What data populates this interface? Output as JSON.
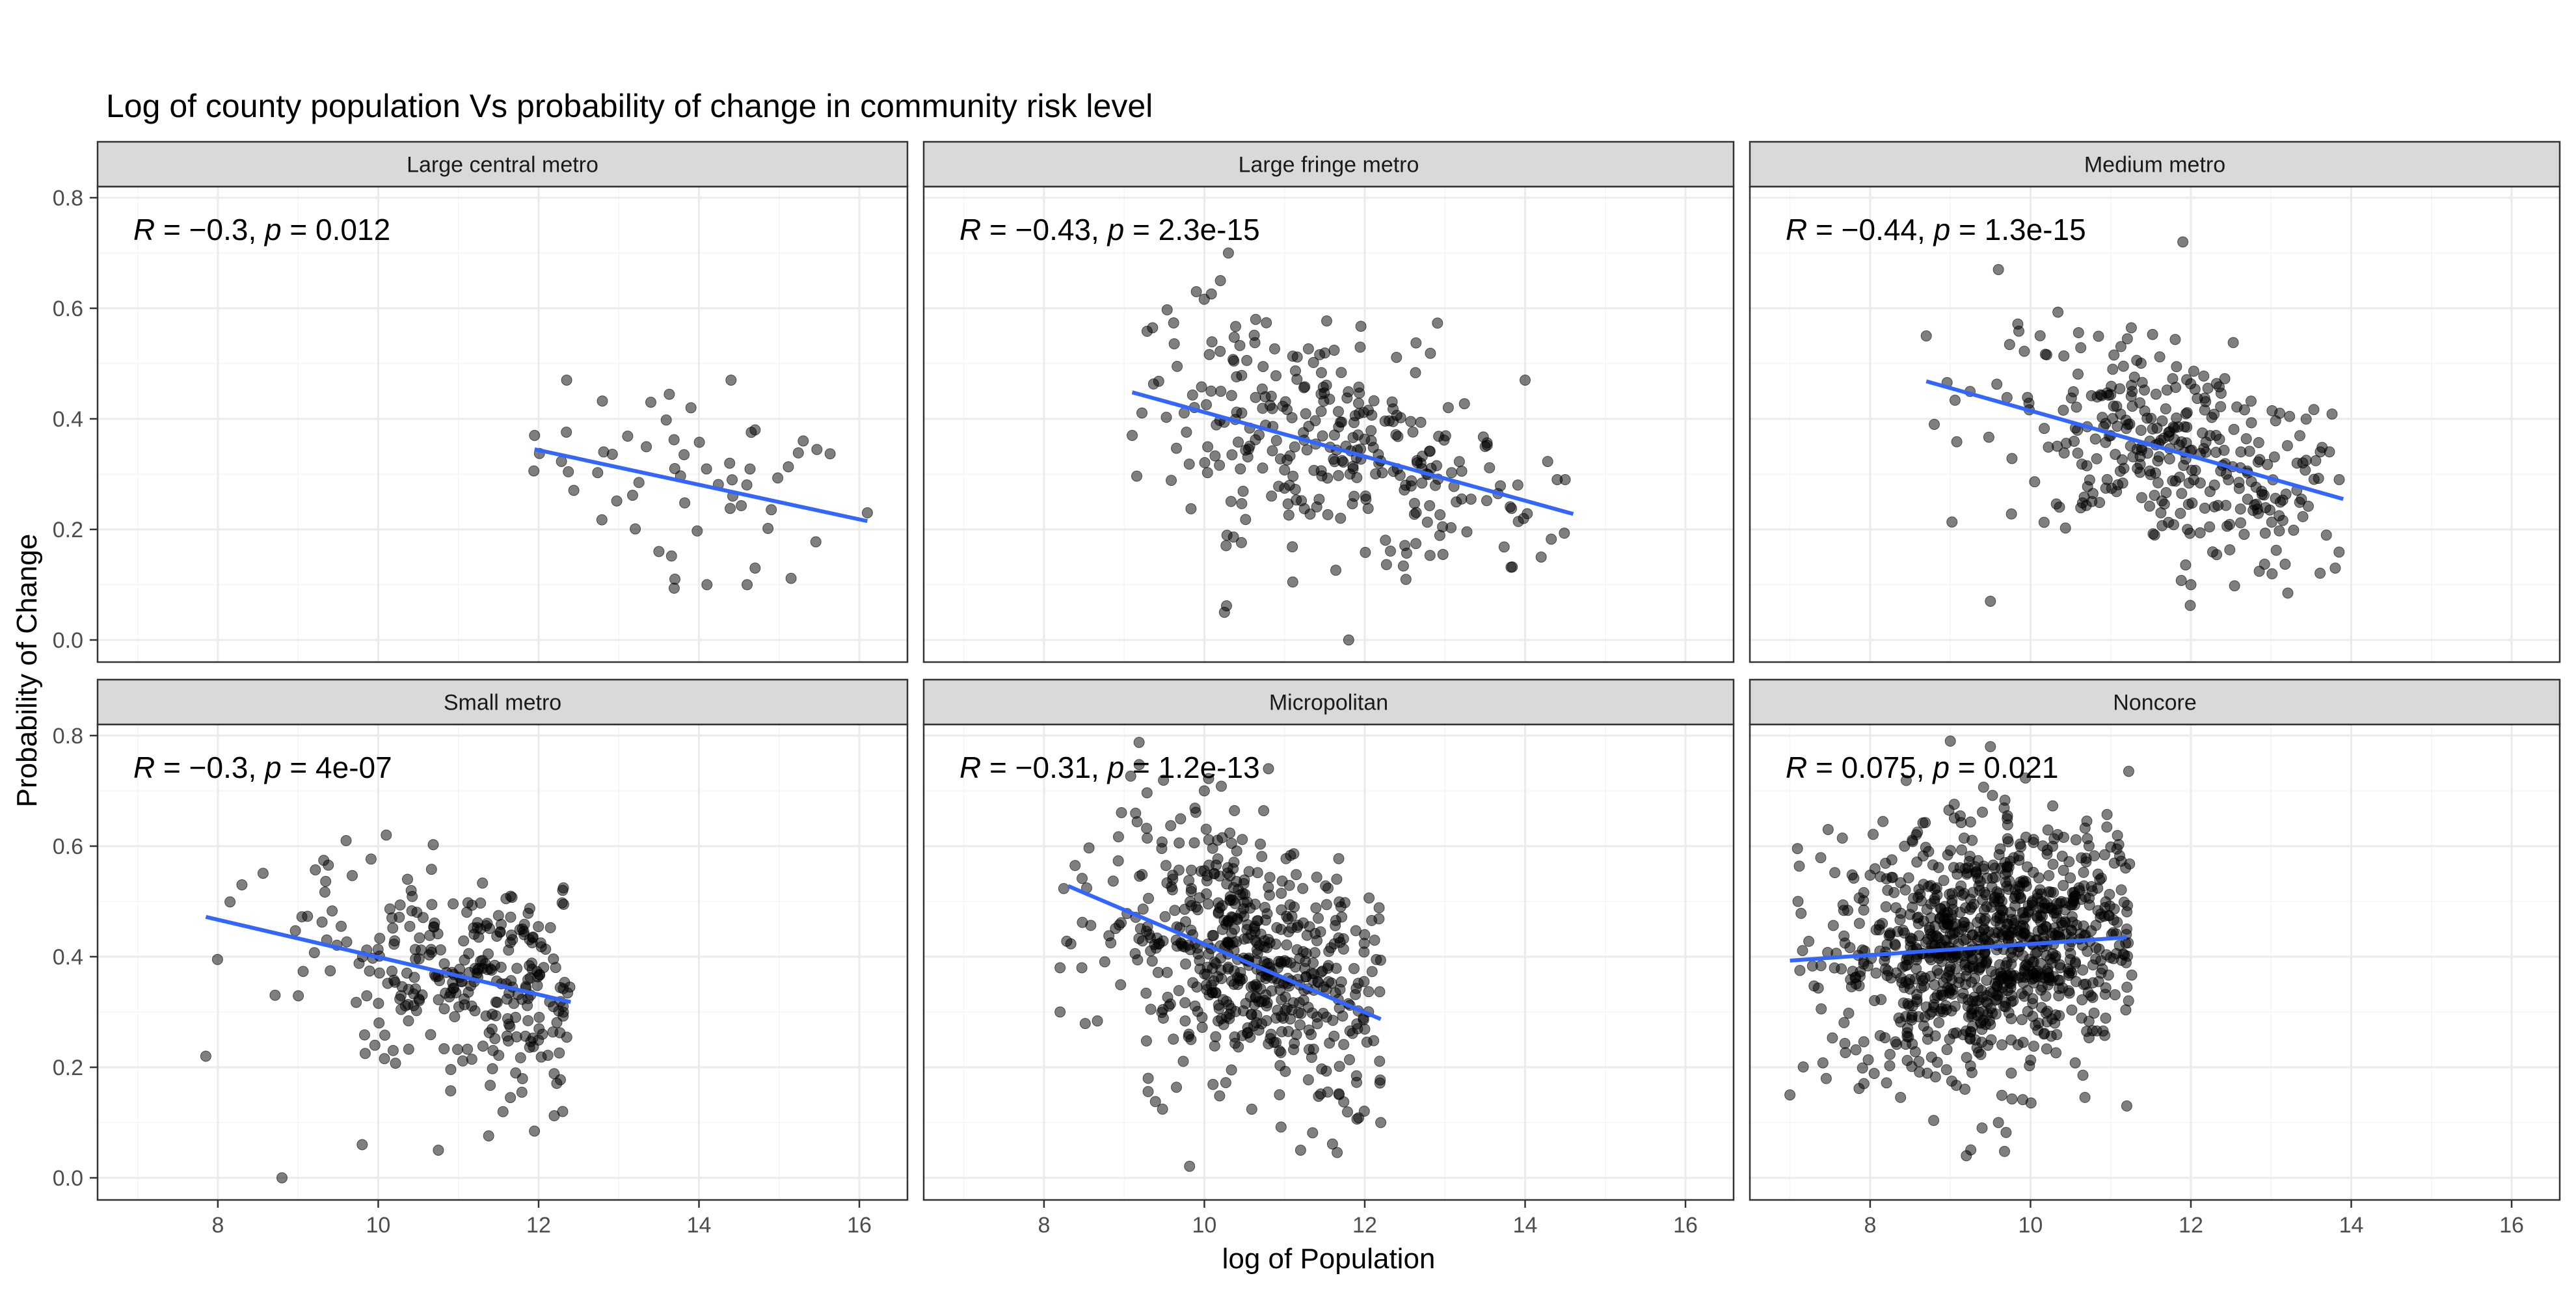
{
  "chart_data": {
    "type": "scatter",
    "title": "Log of county population Vs probability of change in community risk level",
    "xlabel": "log of Population",
    "ylabel": "Probability of Change",
    "xlim": [
      6.5,
      16.6
    ],
    "ylim": [
      -0.04,
      0.82
    ],
    "x_ticks": [
      8,
      10,
      12,
      14,
      16
    ],
    "y_ticks": [
      0.0,
      0.2,
      0.4,
      0.6,
      0.8
    ],
    "y_tick_labels": [
      "0.0",
      "0.2",
      "0.4",
      "0.6",
      "0.8"
    ],
    "grid": true,
    "layout": "facet grid 2 rows x 3 columns, shared axes",
    "panels": [
      {
        "title": "Large central metro",
        "annotation": {
          "R": "−0.3",
          "p": "0.012"
        },
        "fit_line": {
          "x": [
            11.95,
            16.1
          ],
          "y": [
            0.345,
            0.215
          ]
        },
        "points": {
          "n": 60,
          "x_range": [
            11.9,
            16.1
          ],
          "y_mean": 0.28,
          "y_sd": 0.075,
          "x_center": 14.0,
          "anchors": [
            [
              12.35,
              0.47
            ],
            [
              14.4,
              0.47
            ],
            [
              13.4,
              0.43
            ],
            [
              13.9,
              0.42
            ],
            [
              14.7,
              0.38
            ],
            [
              15.3,
              0.36
            ],
            [
              16.1,
              0.23
            ],
            [
              11.95,
              0.37
            ],
            [
              13.7,
              0.11
            ],
            [
              14.1,
              0.1
            ],
            [
              14.6,
              0.1
            ],
            [
              14.7,
              0.13
            ],
            [
              13.5,
              0.16
            ]
          ]
        }
      },
      {
        "title": "Large fringe metro",
        "annotation": {
          "R": "−0.43",
          "p": "2.3e-15"
        },
        "fit_line": {
          "x": [
            9.1,
            14.6
          ],
          "y": [
            0.448,
            0.228
          ]
        },
        "points": {
          "n": 300,
          "x_range": [
            9.1,
            14.5
          ],
          "y_mean": 0.34,
          "y_sd": 0.1,
          "x_center": 11.6,
          "anchors": [
            [
              10.3,
              0.7
            ],
            [
              10.2,
              0.65
            ],
            [
              9.9,
              0.63
            ],
            [
              9.1,
              0.37
            ],
            [
              11.8,
              0.0
            ],
            [
              10.25,
              0.05
            ],
            [
              14.2,
              0.15
            ],
            [
              14.4,
              0.29
            ],
            [
              14.5,
              0.29
            ],
            [
              14.0,
              0.47
            ]
          ]
        }
      },
      {
        "title": "Medium metro",
        "annotation": {
          "R": "−0.44",
          "p": "1.3e-15"
        },
        "fit_line": {
          "x": [
            8.7,
            13.9
          ],
          "y": [
            0.468,
            0.255
          ]
        },
        "points": {
          "n": 330,
          "x_range": [
            8.7,
            13.85
          ],
          "y_mean": 0.33,
          "y_sd": 0.095,
          "x_center": 11.8,
          "anchors": [
            [
              8.7,
              0.55
            ],
            [
              9.6,
              0.67
            ],
            [
              11.9,
              0.72
            ],
            [
              9.5,
              0.07
            ],
            [
              12.0,
              0.1
            ],
            [
              13.8,
              0.13
            ],
            [
              13.85,
              0.29
            ],
            [
              8.8,
              0.39
            ]
          ]
        }
      },
      {
        "title": "Small metro",
        "annotation": {
          "R": "−0.3",
          "p": "4e-07"
        },
        "fit_line": {
          "x": [
            7.85,
            12.4
          ],
          "y": [
            0.472,
            0.318
          ]
        },
        "points": {
          "n": 300,
          "x_range": [
            7.85,
            12.4
          ],
          "y_mean": 0.35,
          "y_sd": 0.095,
          "x_center": 11.4,
          "anchors": [
            [
              7.85,
              0.22
            ],
            [
              8.8,
              0.0
            ],
            [
              9.6,
              0.61
            ],
            [
              10.1,
              0.62
            ],
            [
              8.3,
              0.53
            ],
            [
              10.75,
              0.05
            ],
            [
              9.8,
              0.06
            ],
            [
              12.3,
              0.12
            ],
            [
              12.3,
              0.52
            ]
          ]
        }
      },
      {
        "title": "Micropolitan",
        "annotation": {
          "R": "−0.31",
          "p": "1.2e-13"
        },
        "fit_line": {
          "x": [
            8.3,
            12.2
          ],
          "y": [
            0.528,
            0.287
          ]
        },
        "points": {
          "n": 560,
          "x_range": [
            8.2,
            12.2
          ],
          "y_mean": 0.39,
          "y_sd": 0.11,
          "x_center": 10.6,
          "anchors": [
            [
              10.8,
              0.74
            ],
            [
              10.0,
              0.7
            ],
            [
              8.2,
              0.38
            ],
            [
              8.2,
              0.3
            ],
            [
              11.2,
              0.05
            ],
            [
              12.2,
              0.1
            ],
            [
              9.3,
              0.18
            ]
          ]
        }
      },
      {
        "title": "Noncore",
        "annotation": {
          "R": "0.075",
          "p": "0.021"
        },
        "fit_line": {
          "x": [
            7.0,
            11.2
          ],
          "y": [
            0.393,
            0.435
          ]
        },
        "points": {
          "n": 980,
          "x_range": [
            7.0,
            11.3
          ],
          "y_mean": 0.41,
          "y_sd": 0.11,
          "x_center": 9.6,
          "anchors": [
            [
              7.0,
              0.15
            ],
            [
              7.1,
              0.5
            ],
            [
              9.0,
              0.79
            ],
            [
              9.5,
              0.78
            ],
            [
              9.2,
              0.04
            ],
            [
              9.6,
              0.1
            ],
            [
              11.2,
              0.13
            ],
            [
              11.2,
              0.45
            ]
          ]
        }
      }
    ],
    "colors": {
      "points": "#000000",
      "point_opacity": 0.5,
      "fit_line": "#3366FF",
      "strip_bg": "#D9D9D9",
      "panel_border": "#333333",
      "grid_major": "#EBEBEB",
      "grid_minor": "#F5F5F5",
      "text": "#000000",
      "tick_text": "#4D4D4D"
    }
  }
}
